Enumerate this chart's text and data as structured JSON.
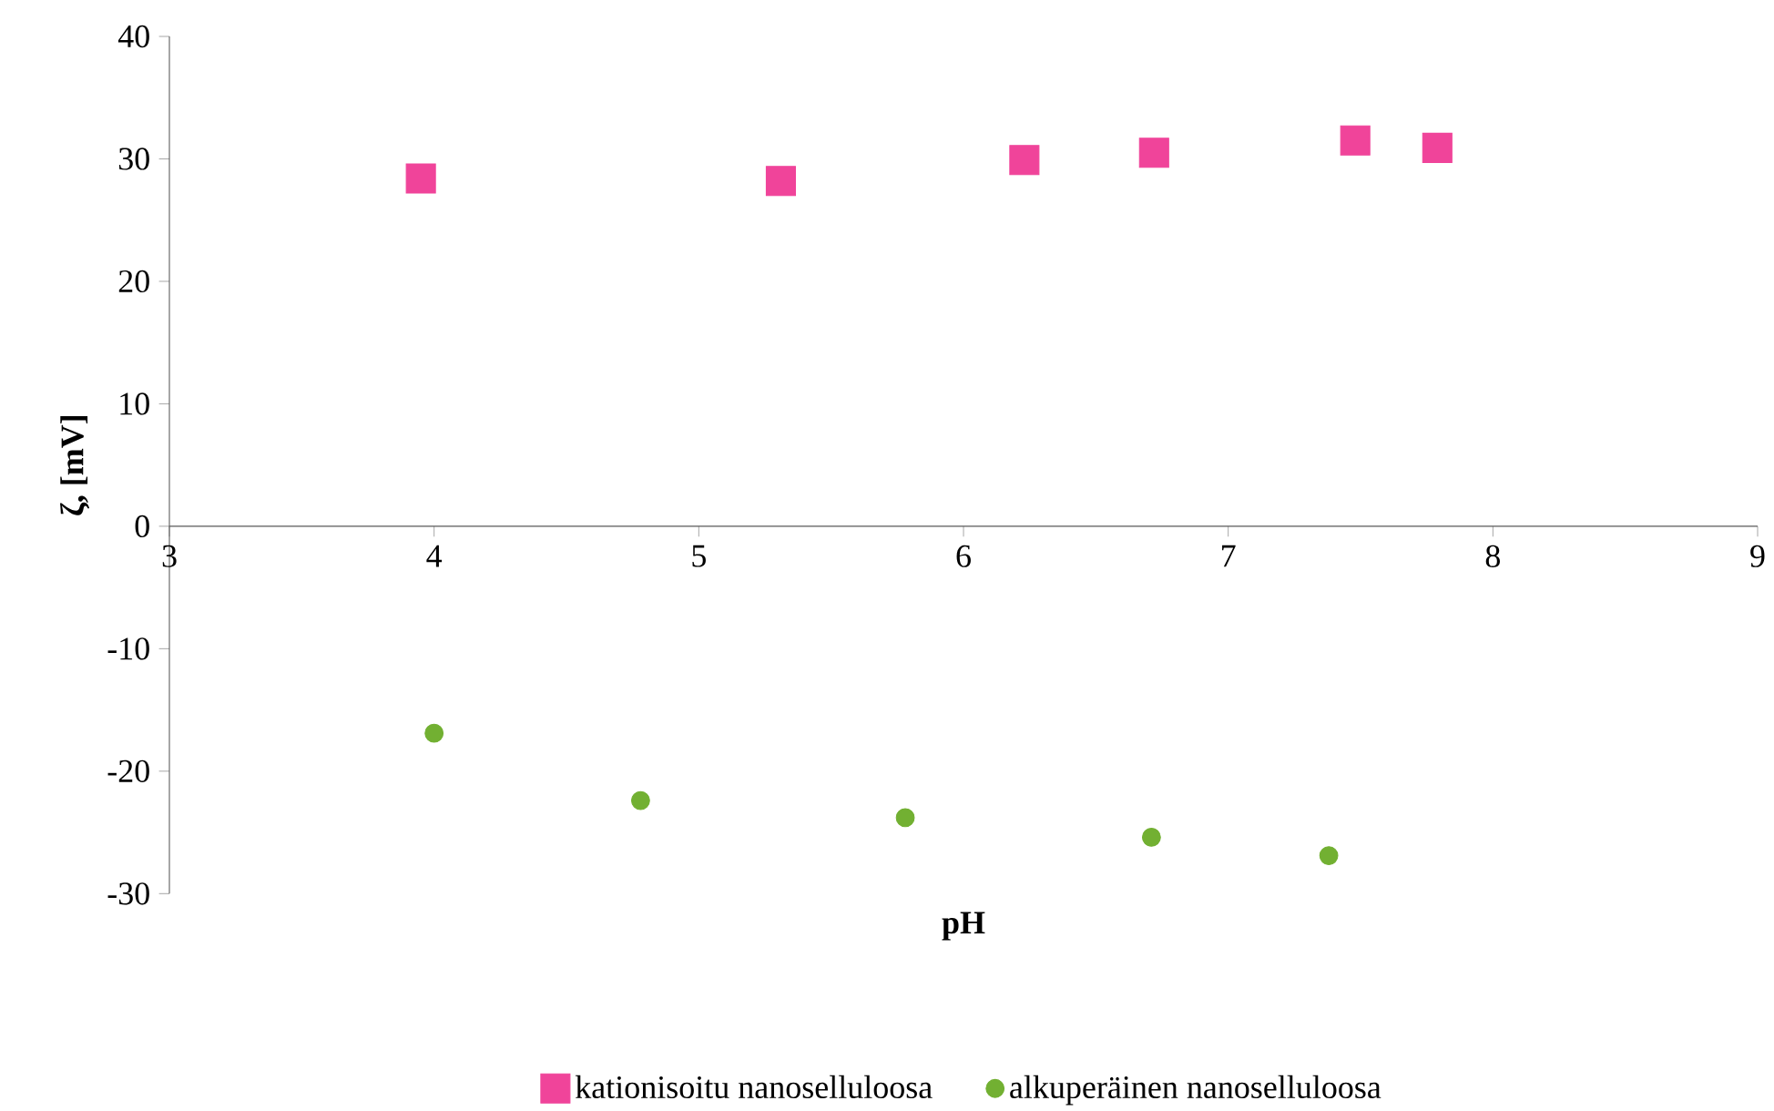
{
  "chart_data": {
    "type": "scatter",
    "xlabel": "pH",
    "ylabel": "ζ, [mV]",
    "xlim": [
      3,
      9
    ],
    "xticks": [
      3,
      4,
      5,
      6,
      7,
      8,
      9
    ],
    "ylim": [
      -30,
      40
    ],
    "yticks": [
      -30,
      -20,
      -10,
      0,
      10,
      20,
      30,
      40
    ],
    "grid": false,
    "legend": "bottom",
    "series": [
      {
        "name": "kationisoitu nanoselluloosa",
        "color": "#f0449a",
        "marker": "square",
        "x": [
          3.95,
          5.31,
          6.23,
          6.72,
          7.48,
          7.79
        ],
        "values": [
          28.4,
          28.2,
          29.9,
          30.5,
          31.5,
          30.9
        ]
      },
      {
        "name": "alkuperäinen nanoselluloosa",
        "color": "#72b032",
        "marker": "circle",
        "x": [
          4.0,
          4.78,
          5.78,
          6.71,
          7.38
        ],
        "values": [
          -16.9,
          -22.4,
          -23.8,
          -25.4,
          -26.9
        ]
      }
    ]
  }
}
